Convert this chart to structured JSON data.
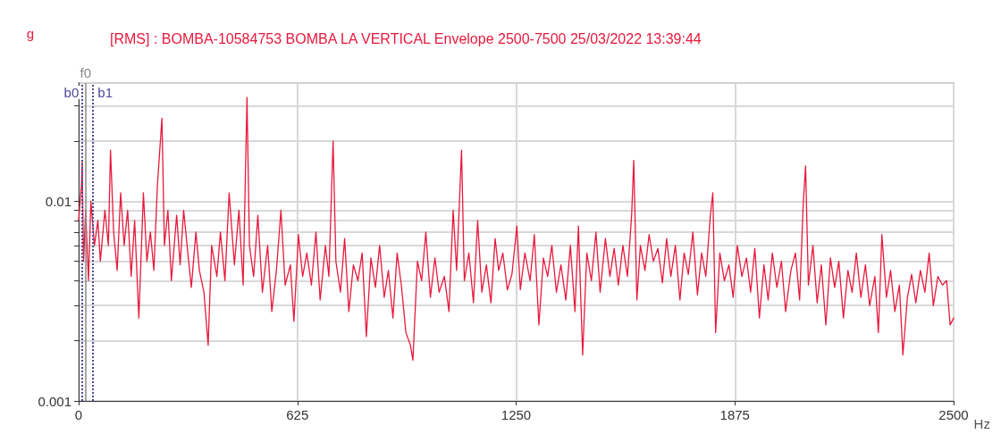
{
  "chart_data": {
    "type": "line",
    "title": "[RMS] : BOMBA-10584753 BOMBA LA VERTICAL Envelope 2500-7500 25/03/2022 13:39:44",
    "xlabel": "Hz",
    "ylabel": "g",
    "log": "y",
    "grid": true,
    "line_style": "solid",
    "marker": "none",
    "xlim": [
      0,
      2500
    ],
    "xticks": [
      0,
      625,
      1250,
      1875,
      2500
    ],
    "ylim": [
      0.001,
      0.039
    ],
    "yticks": [
      0.001,
      {
        "value": 0.002,
        "label": null
      },
      {
        "value": 0.003,
        "label": null
      },
      {
        "value": 0.004,
        "label": null
      },
      {
        "value": 0.005,
        "label": null
      },
      {
        "value": 0.006,
        "label": null
      },
      {
        "value": 0.007,
        "label": null
      },
      {
        "value": 0.008,
        "label": null
      },
      {
        "value": 0.009,
        "label": null
      },
      0.01,
      {
        "value": 0.02,
        "label": null
      },
      {
        "value": 0.03,
        "label": null
      }
    ],
    "ref_lines": [
      {
        "axis": "x",
        "value": 20,
        "label": "f0",
        "color": "#888888",
        "line_style": "solid"
      },
      {
        "axis": "x",
        "value": 10,
        "label": "b0",
        "color": "#4b4b9a",
        "line_style": "dotted"
      },
      {
        "axis": "x",
        "value": 40,
        "label": "b1",
        "color": "#4b4b9a",
        "line_style": "dotted"
      }
    ],
    "series": [
      {
        "color": "#e8193c",
        "x": [
          0,
          8,
          10,
          14,
          20,
          28,
          35,
          45,
          55,
          62,
          75,
          85,
          91,
          100,
          110,
          120,
          130,
          140,
          150,
          160,
          172,
          185,
          195,
          205,
          215,
          225,
          238,
          245,
          255,
          265,
          280,
          290,
          300,
          312,
          322,
          335,
          345,
          358,
          370,
          380,
          395,
          405,
          418,
          430,
          445,
          458,
          470,
          481,
          488,
          500,
          512,
          525,
          540,
          552,
          565,
          578,
          590,
          605,
          615,
          628,
          640,
          652,
          665,
          678,
          690,
          705,
          715,
          727,
          735,
          748,
          760,
          772,
          785,
          798,
          810,
          822,
          835,
          848,
          860,
          873,
          885,
          898,
          910,
          922,
          935,
          948,
          955,
          968,
          980,
          992,
          1005,
          1018,
          1030,
          1045,
          1058,
          1070,
          1080,
          1094,
          1102,
          1115,
          1128,
          1140,
          1152,
          1165,
          1178,
          1190,
          1200,
          1212,
          1225,
          1238,
          1252,
          1262,
          1275,
          1290,
          1302,
          1315,
          1328,
          1340,
          1352,
          1365,
          1378,
          1392,
          1405,
          1418,
          1428,
          1440,
          1452,
          1465,
          1478,
          1490,
          1505,
          1518,
          1530,
          1542,
          1555,
          1568,
          1580,
          1586,
          1595,
          1605,
          1618,
          1630,
          1642,
          1655,
          1668,
          1680,
          1692,
          1705,
          1718,
          1730,
          1742,
          1755,
          1768,
          1780,
          1792,
          1805,
          1812,
          1820,
          1832,
          1845,
          1858,
          1870,
          1882,
          1895,
          1908,
          1920,
          1932,
          1945,
          1958,
          1970,
          1982,
          1995,
          2008,
          2020,
          2035,
          2048,
          2060,
          2070,
          2077,
          2085,
          2098,
          2110,
          2122,
          2135,
          2148,
          2160,
          2172,
          2185,
          2198,
          2210,
          2222,
          2235,
          2248,
          2260,
          2275,
          2285,
          2295,
          2308,
          2320,
          2332,
          2345,
          2355,
          2368,
          2380,
          2392,
          2405,
          2418,
          2430,
          2442,
          2455,
          2468,
          2480,
          2490,
          2500
        ],
        "values": [
          0.008,
          0.012,
          0.016,
          0.005,
          0.009,
          0.004,
          0.01,
          0.006,
          0.008,
          0.005,
          0.009,
          0.006,
          0.018,
          0.007,
          0.0045,
          0.011,
          0.006,
          0.009,
          0.0042,
          0.008,
          0.0026,
          0.011,
          0.005,
          0.007,
          0.0045,
          0.012,
          0.026,
          0.006,
          0.009,
          0.004,
          0.0085,
          0.0048,
          0.009,
          0.0055,
          0.0037,
          0.007,
          0.0045,
          0.0035,
          0.0019,
          0.006,
          0.0042,
          0.007,
          0.004,
          0.011,
          0.0048,
          0.009,
          0.0038,
          0.033,
          0.006,
          0.0042,
          0.0085,
          0.0035,
          0.006,
          0.0028,
          0.0045,
          0.009,
          0.0038,
          0.0048,
          0.0025,
          0.0068,
          0.0042,
          0.0055,
          0.0038,
          0.007,
          0.0032,
          0.006,
          0.0042,
          0.02,
          0.005,
          0.0035,
          0.0065,
          0.0028,
          0.0048,
          0.004,
          0.0055,
          0.0021,
          0.0052,
          0.0037,
          0.006,
          0.0033,
          0.0045,
          0.0026,
          0.0055,
          0.0038,
          0.0022,
          0.0019,
          0.0016,
          0.005,
          0.004,
          0.007,
          0.0033,
          0.0052,
          0.0035,
          0.0042,
          0.0028,
          0.009,
          0.0045,
          0.018,
          0.004,
          0.0055,
          0.0031,
          0.008,
          0.0035,
          0.0048,
          0.0031,
          0.0065,
          0.0045,
          0.0055,
          0.0036,
          0.0043,
          0.0075,
          0.0036,
          0.0055,
          0.004,
          0.0068,
          0.0024,
          0.0052,
          0.0042,
          0.006,
          0.0035,
          0.0048,
          0.0032,
          0.006,
          0.0028,
          0.0075,
          0.0017,
          0.0055,
          0.004,
          0.007,
          0.0035,
          0.0065,
          0.0042,
          0.0058,
          0.0038,
          0.006,
          0.0042,
          0.0085,
          0.016,
          0.0032,
          0.006,
          0.0045,
          0.0068,
          0.005,
          0.0058,
          0.0039,
          0.0065,
          0.0042,
          0.006,
          0.0032,
          0.0055,
          0.0043,
          0.007,
          0.0034,
          0.0055,
          0.0042,
          0.0085,
          0.011,
          0.0022,
          0.0055,
          0.004,
          0.0048,
          0.0033,
          0.006,
          0.0042,
          0.0052,
          0.0035,
          0.0058,
          0.0026,
          0.0048,
          0.0032,
          0.0055,
          0.0037,
          0.005,
          0.0028,
          0.0045,
          0.0055,
          0.0032,
          0.0095,
          0.015,
          0.0038,
          0.006,
          0.0031,
          0.0048,
          0.0024,
          0.0052,
          0.0037,
          0.005,
          0.0026,
          0.0045,
          0.0035,
          0.0055,
          0.0033,
          0.0048,
          0.003,
          0.0042,
          0.0022,
          0.0068,
          0.0033,
          0.0045,
          0.0028,
          0.0038,
          0.0017,
          0.0033,
          0.0043,
          0.0031,
          0.0045,
          0.0035,
          0.0055,
          0.003,
          0.0042,
          0.0038,
          0.004,
          0.0024,
          0.0026
        ]
      }
    ]
  }
}
